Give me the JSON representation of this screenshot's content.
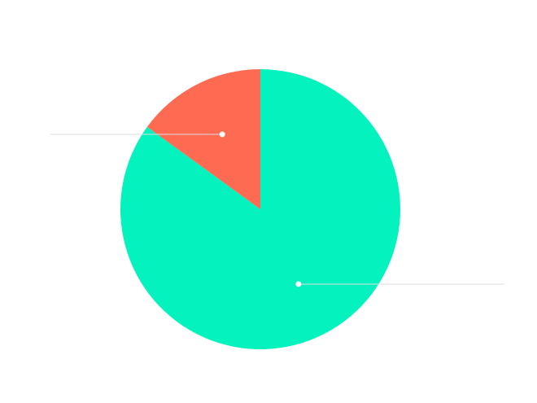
{
  "chart_data": {
    "type": "pie",
    "start_angle_deg": 0,
    "direction": "clockwise",
    "slices": [
      {
        "value": 85,
        "color": "#03F2BE"
      },
      {
        "value": 15,
        "color": "#FF6B52"
      }
    ],
    "label_lines": true,
    "legend": "none"
  }
}
